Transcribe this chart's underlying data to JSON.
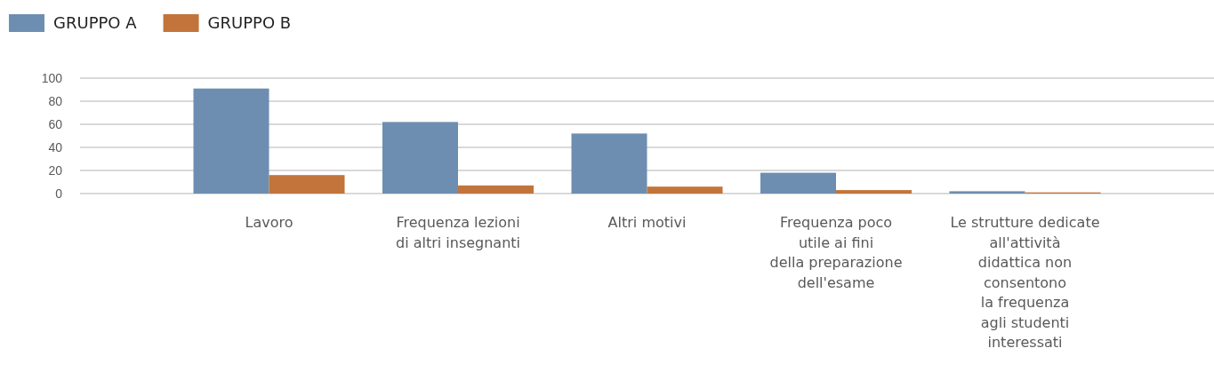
{
  "chart_data": {
    "type": "bar",
    "categories": [
      "Lavoro",
      "Frequenza lezioni\ndi altri insegnanti",
      "Altri motivi",
      "Frequenza poco\nutile ai fini\ndella preparazione\ndell'esame",
      "Le strutture dedicate\nall'attività\ndidattica non\nconsentono\nla frequenza\nagli studenti\ninteressati"
    ],
    "series": [
      {
        "name": "GRUPPO A",
        "color": "#6d8eb0",
        "values": [
          91,
          62,
          52,
          18,
          2
        ]
      },
      {
        "name": "GRUPPO B",
        "color": "#c2743a",
        "values": [
          16,
          7,
          6,
          3,
          1
        ]
      }
    ],
    "ylim": [
      0,
      100
    ],
    "yticks": [
      0,
      20,
      40,
      60,
      80,
      100
    ],
    "grid": "y",
    "legend": "top left"
  }
}
